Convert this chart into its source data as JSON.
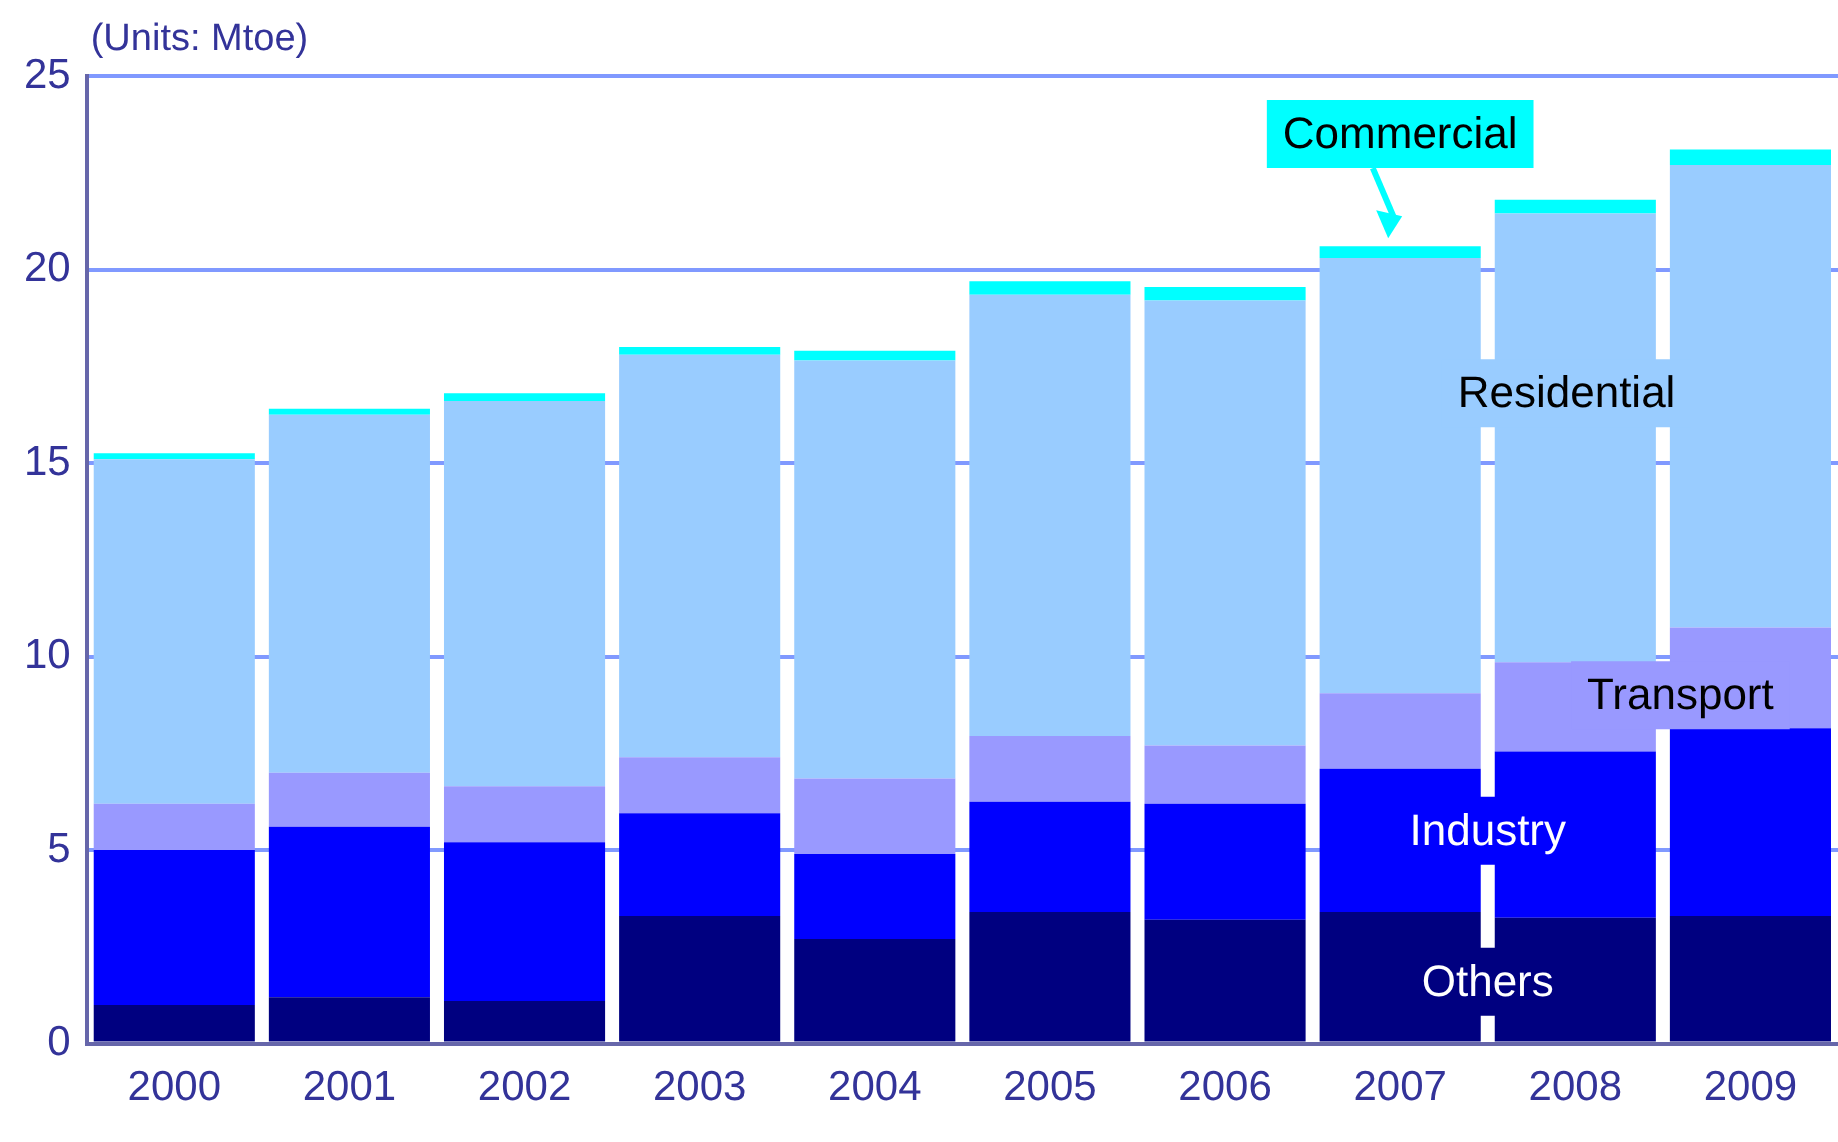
{
  "chart_data": {
    "type": "bar",
    "stacked": true,
    "ylabel": "(Units: Mtoe)",
    "categories": [
      "2000",
      "2001",
      "2002",
      "2003",
      "2004",
      "2005",
      "2006",
      "2007",
      "2008",
      "2009"
    ],
    "series": [
      {
        "name": "Others",
        "color": "#000080",
        "values": [
          1.0,
          1.2,
          1.1,
          3.3,
          2.7,
          3.4,
          3.2,
          3.4,
          3.25,
          3.3
        ]
      },
      {
        "name": "Industry",
        "color": "#0000ff",
        "values": [
          4.0,
          4.4,
          4.1,
          2.65,
          2.2,
          2.85,
          3.0,
          3.7,
          4.3,
          4.85
        ]
      },
      {
        "name": "Transport",
        "color": "#9999ff",
        "values": [
          1.2,
          1.4,
          1.45,
          1.45,
          1.95,
          1.7,
          1.5,
          1.95,
          2.3,
          2.6
        ]
      },
      {
        "name": "Residential",
        "color": "#99ccff",
        "values": [
          8.9,
          9.25,
          9.95,
          10.4,
          10.8,
          11.4,
          11.5,
          11.25,
          11.6,
          11.95
        ]
      },
      {
        "name": "Commercial",
        "color": "#00ffff",
        "values": [
          0.15,
          0.15,
          0.2,
          0.2,
          0.25,
          0.35,
          0.35,
          0.3,
          0.35,
          0.4
        ]
      }
    ],
    "ylim": [
      0,
      25
    ],
    "yticks": [
      0,
      5,
      10,
      15,
      20,
      25
    ],
    "grid": "y",
    "legend": false
  }
}
